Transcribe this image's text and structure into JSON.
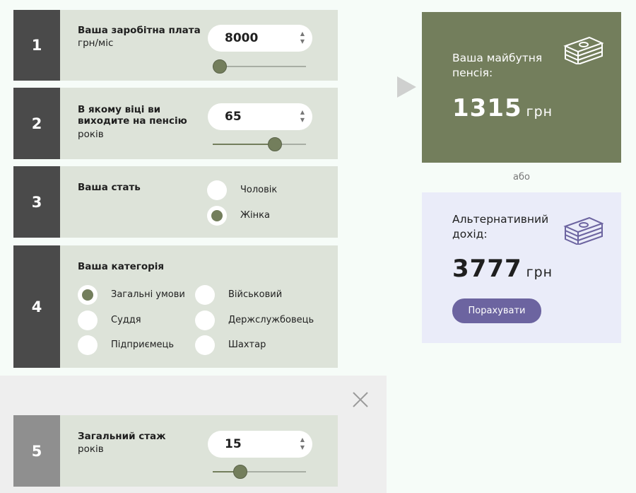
{
  "steps": {
    "s1": {
      "num": "1",
      "title": "Ваша заробітна плата",
      "unit": "грн/міс",
      "value": "8000",
      "slider_fraction": 0.0
    },
    "s2": {
      "num": "2",
      "title": "В якому віці ви виходите на пенсію",
      "unit": "років",
      "value": "65",
      "slider_fraction": 0.68
    },
    "s3": {
      "num": "3",
      "title": "Ваша стать",
      "options": [
        "Чоловік",
        "Жінка"
      ],
      "selected": "Жінка"
    },
    "s4": {
      "num": "4",
      "title": "Ваша категорія",
      "options": [
        "Загальні умови",
        "Військовий",
        "Суддя",
        "Держслужбовець",
        "Підприємець",
        "Шахтар"
      ],
      "selected": "Загальні умови"
    },
    "s5": {
      "num": "5",
      "title": "Загальний стаж",
      "unit": "років",
      "value": "15",
      "slider_fraction": 0.25
    }
  },
  "spinner": {
    "up": "▲",
    "down": "▼"
  },
  "result": {
    "label": "Ваша майбутня пенсія:",
    "amount": "1315",
    "currency": "грн",
    "icon": "money-stack-icon",
    "color": "#737e5c"
  },
  "or_text": "або",
  "alternative": {
    "label": "Альтернативний дохід:",
    "amount": "3777",
    "currency": "грн",
    "button": "Порахувати",
    "icon": "money-stack-icon",
    "color": "#eaecf9"
  }
}
